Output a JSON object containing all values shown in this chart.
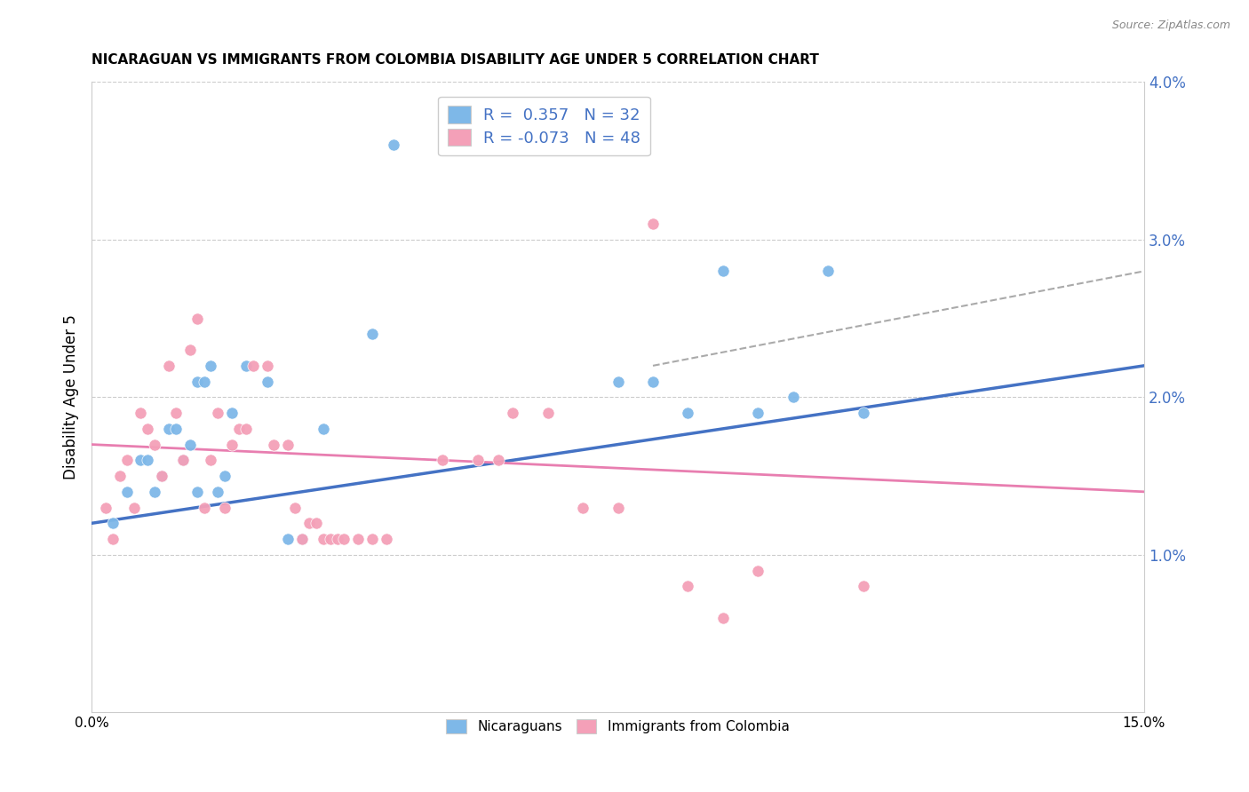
{
  "title": "NICARAGUAN VS IMMIGRANTS FROM COLOMBIA DISABILITY AGE UNDER 5 CORRELATION CHART",
  "source": "Source: ZipAtlas.com",
  "ylabel": "Disability Age Under 5",
  "xlim": [
    0.0,
    0.15
  ],
  "ylim": [
    0.0,
    0.04
  ],
  "yticks": [
    0.01,
    0.02,
    0.03,
    0.04
  ],
  "ytick_labels": [
    "1.0%",
    "2.0%",
    "3.0%",
    "4.0%"
  ],
  "xticks": [
    0.0,
    0.025,
    0.05,
    0.075,
    0.1,
    0.125,
    0.15
  ],
  "xtick_labels": [
    "0.0%",
    "",
    "",
    "",
    "",
    "",
    "15.0%"
  ],
  "legend_r1": "R =  0.357   N = 32",
  "legend_r2": "R = -0.073   N = 48",
  "blue_color": "#7EB8E8",
  "pink_color": "#F4A0B8",
  "blue_line_color": "#4472C4",
  "pink_line_color": "#E87EB0",
  "blue_line_x": [
    0.0,
    0.15
  ],
  "blue_line_y": [
    0.012,
    0.022
  ],
  "pink_line_x": [
    0.0,
    0.15
  ],
  "pink_line_y": [
    0.017,
    0.014
  ],
  "blue_scatter": [
    [
      0.003,
      0.012
    ],
    [
      0.005,
      0.014
    ],
    [
      0.007,
      0.016
    ],
    [
      0.008,
      0.016
    ],
    [
      0.009,
      0.014
    ],
    [
      0.01,
      0.015
    ],
    [
      0.011,
      0.018
    ],
    [
      0.012,
      0.018
    ],
    [
      0.013,
      0.016
    ],
    [
      0.014,
      0.017
    ],
    [
      0.015,
      0.014
    ],
    [
      0.015,
      0.021
    ],
    [
      0.016,
      0.021
    ],
    [
      0.017,
      0.022
    ],
    [
      0.018,
      0.014
    ],
    [
      0.019,
      0.015
    ],
    [
      0.02,
      0.019
    ],
    [
      0.022,
      0.022
    ],
    [
      0.025,
      0.021
    ],
    [
      0.028,
      0.011
    ],
    [
      0.03,
      0.011
    ],
    [
      0.033,
      0.018
    ],
    [
      0.04,
      0.024
    ],
    [
      0.043,
      0.036
    ],
    [
      0.075,
      0.021
    ],
    [
      0.08,
      0.021
    ],
    [
      0.085,
      0.019
    ],
    [
      0.09,
      0.028
    ],
    [
      0.095,
      0.019
    ],
    [
      0.1,
      0.02
    ],
    [
      0.105,
      0.028
    ],
    [
      0.11,
      0.019
    ]
  ],
  "pink_scatter": [
    [
      0.002,
      0.013
    ],
    [
      0.003,
      0.011
    ],
    [
      0.004,
      0.015
    ],
    [
      0.005,
      0.016
    ],
    [
      0.006,
      0.013
    ],
    [
      0.007,
      0.019
    ],
    [
      0.008,
      0.018
    ],
    [
      0.009,
      0.017
    ],
    [
      0.01,
      0.015
    ],
    [
      0.011,
      0.022
    ],
    [
      0.012,
      0.019
    ],
    [
      0.013,
      0.016
    ],
    [
      0.014,
      0.023
    ],
    [
      0.015,
      0.025
    ],
    [
      0.016,
      0.013
    ],
    [
      0.017,
      0.016
    ],
    [
      0.018,
      0.019
    ],
    [
      0.019,
      0.013
    ],
    [
      0.02,
      0.017
    ],
    [
      0.021,
      0.018
    ],
    [
      0.022,
      0.018
    ],
    [
      0.023,
      0.022
    ],
    [
      0.025,
      0.022
    ],
    [
      0.026,
      0.017
    ],
    [
      0.028,
      0.017
    ],
    [
      0.029,
      0.013
    ],
    [
      0.03,
      0.011
    ],
    [
      0.031,
      0.012
    ],
    [
      0.032,
      0.012
    ],
    [
      0.033,
      0.011
    ],
    [
      0.034,
      0.011
    ],
    [
      0.035,
      0.011
    ],
    [
      0.036,
      0.011
    ],
    [
      0.038,
      0.011
    ],
    [
      0.04,
      0.011
    ],
    [
      0.042,
      0.011
    ],
    [
      0.05,
      0.016
    ],
    [
      0.055,
      0.016
    ],
    [
      0.058,
      0.016
    ],
    [
      0.06,
      0.019
    ],
    [
      0.065,
      0.019
    ],
    [
      0.07,
      0.013
    ],
    [
      0.075,
      0.013
    ],
    [
      0.08,
      0.031
    ],
    [
      0.085,
      0.008
    ],
    [
      0.09,
      0.006
    ],
    [
      0.095,
      0.009
    ],
    [
      0.11,
      0.008
    ]
  ]
}
